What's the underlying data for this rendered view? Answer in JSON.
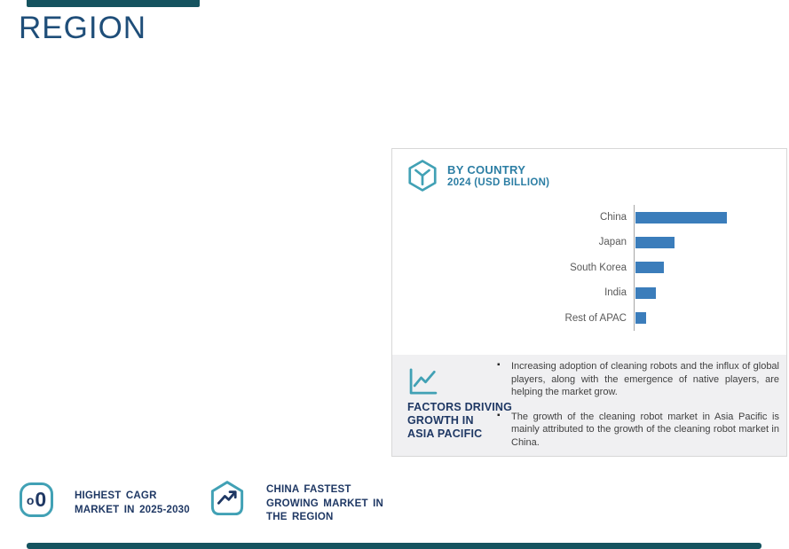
{
  "page": {
    "title": "REGION",
    "title_color": "#1F4E79",
    "accent_bar_color": "#15535F"
  },
  "card": {
    "header": {
      "icon": "hexagon-box-icon",
      "title": "BY COUNTRY",
      "subtitle": "2024 (USD BILLION)",
      "text_color": "#2C7EA4"
    },
    "factors": {
      "icon": "line-chart-icon",
      "heading_lines": [
        "FACTORS DRIVING",
        "GROWTH IN",
        "ASIA PACIFIC"
      ],
      "bullets": [
        "Increasing adoption of cleaning robots and the influx of global players, along with the emergence of native players, are helping the market grow.",
        "The growth of the cleaning robot market in Asia Pacific is mainly attributed to the growth of the cleaning robot market in China."
      ],
      "background_color": "#F0F0F2"
    }
  },
  "chart_data": {
    "type": "bar",
    "orientation": "horizontal",
    "title": "BY COUNTRY 2024 (USD BILLION)",
    "categories": [
      "China",
      "Japan",
      "South Korea",
      "India",
      "Rest of APAC"
    ],
    "values": [
      103,
      44,
      32,
      23,
      12
    ],
    "value_labels_shown": false,
    "xlim": [
      0,
      170
    ],
    "grid": false,
    "legend": false,
    "bar_color": "#3B7DBB",
    "axis_color": "#A6A6A6",
    "label_color": "#595959"
  },
  "badges": [
    {
      "icon": "cagr-gauge-icon",
      "icon_glyphs": {
        "small": "o",
        "large": "0"
      },
      "lines": [
        "HIGHEST CAGR",
        "MARKET IN 2025-2030"
      ]
    },
    {
      "icon": "trending-up-home-icon",
      "lines": [
        "CHINA FASTEST",
        "GROWING MARKET IN",
        "THE REGION"
      ]
    }
  ],
  "icon_color": "#41A1B5",
  "navy_color": "#1F3864"
}
